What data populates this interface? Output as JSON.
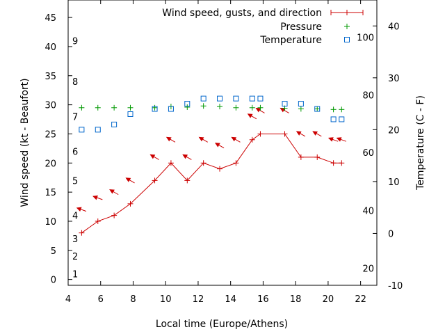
{
  "chart_data": {
    "type": "line",
    "xlabel": "Local time (Europe/Athens)",
    "ylabel": "Wind speed (kt - Beaufort)",
    "y2label": "Temperature (C - F)",
    "xlim": [
      4,
      23
    ],
    "ylim": [
      -1,
      48
    ],
    "y2lim": [
      -10,
      45
    ],
    "grid": false,
    "legend_position": "top-right",
    "x_ticks": [
      4,
      6,
      8,
      10,
      12,
      14,
      16,
      18,
      20,
      22
    ],
    "y_ticks": [
      0,
      5,
      10,
      15,
      20,
      25,
      30,
      35,
      40,
      45
    ],
    "y2_ticks": [
      -10,
      0,
      10,
      20,
      30,
      40
    ],
    "fahrenheit_labels": [
      {
        "label": "20",
        "celsius": -6.7
      },
      {
        "label": "40",
        "celsius": 4.4
      },
      {
        "label": "60",
        "celsius": 15.6
      },
      {
        "label": "80",
        "celsius": 26.7
      },
      {
        "label": "100",
        "celsius": 37.8
      }
    ],
    "beaufort_labels": [
      {
        "label": "1",
        "kt": 1
      },
      {
        "label": "2",
        "kt": 4
      },
      {
        "label": "3",
        "kt": 7
      },
      {
        "label": "4",
        "kt": 11
      },
      {
        "label": "5",
        "kt": 17
      },
      {
        "label": "6",
        "kt": 22
      },
      {
        "label": "7",
        "kt": 28
      },
      {
        "label": "8",
        "kt": 34
      },
      {
        "label": "9",
        "kt": 41
      }
    ],
    "series": [
      {
        "name": "Wind speed, gusts, and direction",
        "axis": "y",
        "color": "#cc0000",
        "x": [
          4.83,
          5.83,
          6.83,
          7.83,
          9.33,
          10.33,
          11.33,
          12.33,
          13.33,
          14.33,
          15.33,
          15.83,
          17.33,
          18.33,
          19.33,
          20.33,
          20.83
        ],
        "values": [
          8,
          10,
          11,
          13,
          17,
          20,
          17,
          20,
          19,
          20,
          24,
          25,
          25,
          21,
          21,
          20,
          20
        ],
        "direction_x": [
          4.83,
          5.83,
          6.83,
          7.83,
          9.33,
          10.33,
          11.33,
          12.33,
          13.33,
          14.33,
          15.33,
          15.83,
          17.33,
          18.33,
          19.33,
          20.33,
          20.83
        ],
        "direction_y": [
          12,
          14,
          15,
          17,
          21,
          24,
          21,
          24,
          23,
          24,
          28,
          29,
          29,
          25,
          25,
          24,
          24
        ],
        "direction_to_deg": [
          290,
          290,
          300,
          300,
          300,
          300,
          300,
          300,
          300,
          300,
          300,
          300,
          300,
          300,
          300,
          290,
          290
        ]
      },
      {
        "name": "Pressure",
        "axis": "y",
        "color": "#009900",
        "x": [
          4.83,
          5.83,
          6.83,
          7.83,
          9.33,
          10.33,
          11.33,
          12.33,
          13.33,
          14.33,
          15.33,
          15.83,
          17.33,
          18.33,
          19.33,
          20.33,
          20.83
        ],
        "values": [
          29.5,
          29.5,
          29.5,
          29.5,
          29.5,
          29.7,
          29.6,
          29.8,
          29.7,
          29.5,
          29.5,
          29.5,
          29.4,
          29.3,
          29.3,
          29.2,
          29.2
        ]
      },
      {
        "name": "Temperature",
        "axis": "y2",
        "color": "#0066cc",
        "x": [
          4.83,
          5.83,
          6.83,
          7.83,
          9.33,
          10.33,
          11.33,
          12.33,
          13.33,
          14.33,
          15.33,
          15.83,
          17.33,
          18.33,
          19.33,
          20.33,
          20.83
        ],
        "values": [
          20,
          20,
          21,
          23,
          24,
          24,
          25,
          26,
          26,
          26,
          26,
          26,
          25,
          25,
          24,
          22,
          22
        ]
      }
    ]
  }
}
